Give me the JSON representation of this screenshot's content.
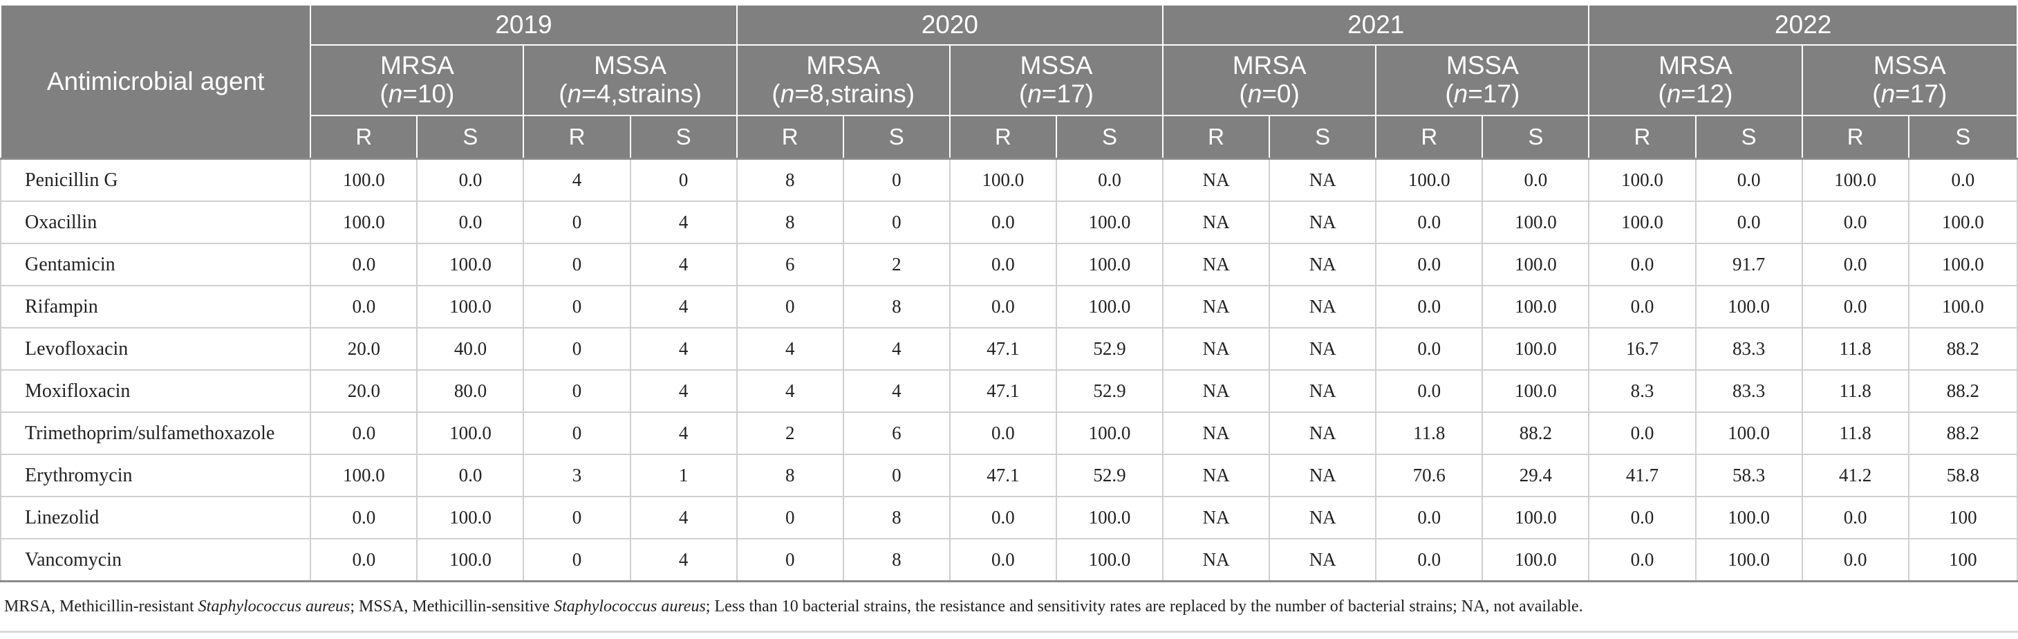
{
  "table": {
    "agent_header": "Antimicrobial agent",
    "years": [
      "2019",
      "2020",
      "2021",
      "2022"
    ],
    "groups": [
      {
        "name": "MRSA",
        "n_label": "n",
        "n_rest": "=10)"
      },
      {
        "name": "MSSA",
        "n_label": "n",
        "n_rest": "=4,strains)"
      },
      {
        "name": "MRSA",
        "n_label": "n",
        "n_rest": "=8,strains)"
      },
      {
        "name": "MSSA",
        "n_label": "n",
        "n_rest": "=17)"
      },
      {
        "name": "MRSA",
        "n_label": "n",
        "n_rest": "=0)"
      },
      {
        "name": "MSSA",
        "n_label": "n",
        "n_rest": "=17)"
      },
      {
        "name": "MRSA",
        "n_label": "n",
        "n_rest": "=12)"
      },
      {
        "name": "MSSA",
        "n_label": "n",
        "n_rest": "=17)"
      }
    ],
    "r_label": "R",
    "s_label": "S",
    "rows": [
      {
        "agent": "Penicillin G",
        "values": [
          "100.0",
          "0.0",
          "4",
          "0",
          "8",
          "0",
          "100.0",
          "0.0",
          "NA",
          "NA",
          "100.0",
          "0.0",
          "100.0",
          "0.0",
          "100.0",
          "0.0"
        ]
      },
      {
        "agent": "Oxacillin",
        "values": [
          "100.0",
          "0.0",
          "0",
          "4",
          "8",
          "0",
          "0.0",
          "100.0",
          "NA",
          "NA",
          "0.0",
          "100.0",
          "100.0",
          "0.0",
          "0.0",
          "100.0"
        ]
      },
      {
        "agent": "Gentamicin",
        "values": [
          "0.0",
          "100.0",
          "0",
          "4",
          "6",
          "2",
          "0.0",
          "100.0",
          "NA",
          "NA",
          "0.0",
          "100.0",
          "0.0",
          "91.7",
          "0.0",
          "100.0"
        ]
      },
      {
        "agent": "Rifampin",
        "values": [
          "0.0",
          "100.0",
          "0",
          "4",
          "0",
          "8",
          "0.0",
          "100.0",
          "NA",
          "NA",
          "0.0",
          "100.0",
          "0.0",
          "100.0",
          "0.0",
          "100.0"
        ]
      },
      {
        "agent": "Levofloxacin",
        "values": [
          "20.0",
          "40.0",
          "0",
          "4",
          "4",
          "4",
          "47.1",
          "52.9",
          "NA",
          "NA",
          "0.0",
          "100.0",
          "16.7",
          "83.3",
          "11.8",
          "88.2"
        ]
      },
      {
        "agent": "Moxifloxacin",
        "values": [
          "20.0",
          "80.0",
          "0",
          "4",
          "4",
          "4",
          "47.1",
          "52.9",
          "NA",
          "NA",
          "0.0",
          "100.0",
          "8.3",
          "83.3",
          "11.8",
          "88.2"
        ]
      },
      {
        "agent": "Trimethoprim/sulfamethoxazole",
        "values": [
          "0.0",
          "100.0",
          "0",
          "4",
          "2",
          "6",
          "0.0",
          "100.0",
          "NA",
          "NA",
          "11.8",
          "88.2",
          "0.0",
          "100.0",
          "11.8",
          "88.2"
        ]
      },
      {
        "agent": "Erythromycin",
        "values": [
          "100.0",
          "0.0",
          "3",
          "1",
          "8",
          "0",
          "47.1",
          "52.9",
          "NA",
          "NA",
          "70.6",
          "29.4",
          "41.7",
          "58.3",
          "41.2",
          "58.8"
        ]
      },
      {
        "agent": "Linezolid",
        "values": [
          "0.0",
          "100.0",
          "0",
          "4",
          "0",
          "8",
          "0.0",
          "100.0",
          "NA",
          "NA",
          "0.0",
          "100.0",
          "0.0",
          "100.0",
          "0.0",
          "100"
        ]
      },
      {
        "agent": "Vancomycin",
        "values": [
          "0.0",
          "100.0",
          "0",
          "4",
          "0",
          "8",
          "0.0",
          "100.0",
          "NA",
          "NA",
          "0.0",
          "100.0",
          "0.0",
          "100.0",
          "0.0",
          "100"
        ]
      }
    ]
  },
  "footnote": {
    "p1": "MRSA, Methicillin-resistant ",
    "i1": "Staphylococcus aureus",
    "p2": "; MSSA, Methicillin-sensitive ",
    "i2": "Staphylococcus aureus",
    "p3": "; Less than 10 bacterial strains, the resistance and sensitivity rates are replaced by the number of bacterial strains; NA, not available."
  },
  "colors": {
    "header_bg": "#808080",
    "header_text": "#ffffff",
    "grid": "#cfcfcf"
  }
}
